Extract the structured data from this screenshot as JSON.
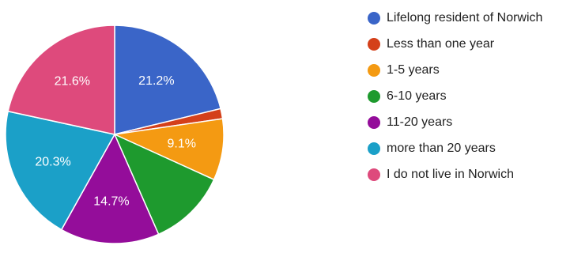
{
  "chart_data": {
    "type": "pie",
    "title": "",
    "start": "top, clockwise",
    "slices": [
      {
        "label": "Lifelong resident of Norwich",
        "value": 21.2,
        "color": "#3a65c8",
        "data_label": "21.2%"
      },
      {
        "label": "Less than one year",
        "value": 1.5,
        "color": "#d4401a",
        "data_label": ""
      },
      {
        "label": "1-5 years",
        "value": 9.1,
        "color": "#f49a12",
        "data_label": "9.1%"
      },
      {
        "label": "6-10 years",
        "value": 11.6,
        "color": "#1e9a2e",
        "data_label": ""
      },
      {
        "label": "11-20 years",
        "value": 14.7,
        "color": "#940d9a",
        "data_label": "14.7%"
      },
      {
        "label": "more than 20 years",
        "value": 20.3,
        "color": "#1ba0c8",
        "data_label": "20.3%"
      },
      {
        "label": "I do not live in Norwich",
        "value": 21.6,
        "color": "#de4a7c",
        "data_label": "21.6%"
      }
    ],
    "legend_position": "right"
  }
}
